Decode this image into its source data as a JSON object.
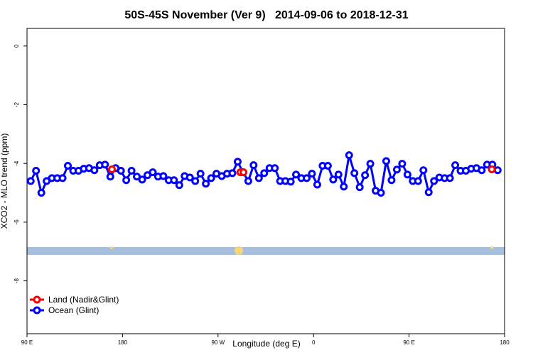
{
  "chart_data": {
    "type": "line",
    "title": "50S-45S November (Ver 9)   2014-09-06 to 2018-12-31",
    "x_label": "Longitude (deg E)",
    "y_label": "XCO2 - MLO trend (ppm)",
    "xlim": [
      90,
      540
    ],
    "ylim": [
      -9.8,
      0.6
    ],
    "xticks": [
      {
        "value": 90,
        "label": "90 E"
      },
      180,
      {
        "value": 270,
        "label": "90 W"
      },
      {
        "value": 360,
        "label": "0"
      },
      {
        "value": 450,
        "label": "90 E"
      },
      {
        "value": 540,
        "label": "180"
      }
    ],
    "yticks": [
      0,
      -2,
      -4,
      -6,
      -8
    ],
    "legend": "bottom-left",
    "series": [
      {
        "name": "Land (Nadir&Glint)",
        "color": "#ff0000",
        "x": [
          170,
          null,
          291,
          294,
          null,
          528
        ],
        "values": [
          -4.2,
          null,
          -4.3,
          -4.3,
          null,
          -4.2
        ]
      },
      {
        "name": "Ocean (Glint)",
        "color": "#0000ff",
        "x": [
          93.5,
          98.5,
          103.5,
          108.5,
          113.5,
          118.5,
          123.5,
          128.5,
          133.5,
          138.5,
          143.5,
          148.5,
          153.5,
          158.5,
          163.5,
          168.5,
          173.5,
          178.5,
          183.5,
          188.5,
          193.5,
          198.5,
          203.5,
          208.5,
          213.5,
          218.5,
          223.5,
          228.5,
          233.5,
          238.5,
          243.5,
          248.5,
          253.5,
          258.5,
          263.5,
          268.5,
          273.5,
          278.5,
          283.5,
          288.5,
          293.5,
          298.5,
          303.5,
          308.5,
          313.5,
          318.5,
          323.5,
          328.5,
          333.5,
          338.5,
          343.5,
          348.5,
          353.5,
          358.5,
          363.5,
          368.5,
          373.5,
          378.5,
          383.5,
          388.5,
          393.5,
          398.5,
          403.5,
          408.5,
          413.5,
          418.5,
          423.5,
          428.5,
          433.5,
          438.5,
          443.5,
          448.5,
          453.5,
          458.5,
          463.5,
          468.5,
          473.5,
          478.5,
          483.5,
          488.5,
          493.5,
          498.5,
          503.5,
          508.5,
          513.5,
          518.5,
          523.5,
          528.5,
          533.5
        ],
        "values": [
          -4.6,
          -4.25,
          -5.0,
          -4.6,
          -4.5,
          -4.5,
          -4.5,
          -4.08,
          -4.25,
          -4.25,
          -4.18,
          -4.16,
          -4.23,
          -4.06,
          -4.04,
          -4.45,
          -4.16,
          -4.25,
          -4.57,
          -4.25,
          -4.45,
          -4.55,
          -4.4,
          -4.3,
          -4.45,
          -4.43,
          -4.57,
          -4.57,
          -4.74,
          -4.43,
          -4.48,
          -4.6,
          -4.35,
          -4.69,
          -4.5,
          -4.35,
          -4.43,
          -4.35,
          -4.33,
          -3.94,
          -4.3,
          -4.6,
          -4.06,
          -4.5,
          -4.33,
          -4.16,
          -4.16,
          -4.6,
          -4.6,
          -4.62,
          -4.38,
          -4.5,
          -4.5,
          -4.35,
          -4.72,
          -4.08,
          -4.08,
          -4.55,
          -4.38,
          -4.79,
          -3.72,
          -4.33,
          -4.81,
          -4.4,
          -4.01,
          -4.93,
          -5.0,
          -3.92,
          -4.57,
          -4.21,
          -4.01,
          -4.38,
          -4.6,
          -4.6,
          -4.23,
          -4.98,
          -4.6,
          -4.48,
          -4.5,
          -4.5,
          -4.06,
          -4.25,
          -4.25,
          -4.18,
          -4.16,
          -4.23,
          -4.04,
          -4.04,
          -4.23
        ]
      }
    ]
  }
}
